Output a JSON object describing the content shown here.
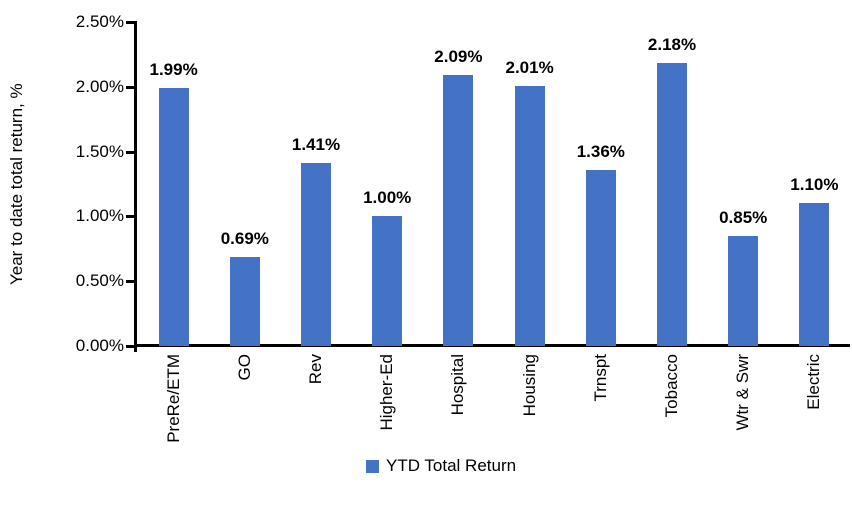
{
  "chart_data": {
    "type": "bar",
    "title": "",
    "xlabel": "",
    "ylabel": "Year to date total return, %",
    "categories": [
      "PreRe/ETM",
      "GO",
      "Rev",
      "Higher-Ed",
      "Hospital",
      "Housing",
      "Trnspt",
      "Tobacco",
      "Wtr & Swr",
      "Electric"
    ],
    "series": [
      {
        "name": "YTD Total Return",
        "values": [
          1.99,
          0.69,
          1.41,
          1.0,
          2.09,
          2.01,
          1.36,
          2.18,
          0.85,
          1.1
        ]
      }
    ],
    "data_labels": [
      "1.99%",
      "0.69%",
      "1.41%",
      "1.00%",
      "2.09%",
      "2.01%",
      "1.36%",
      "2.18%",
      "0.85%",
      "1.10%"
    ],
    "y_ticks": [
      "0.00%",
      "0.50%",
      "1.00%",
      "1.50%",
      "2.00%",
      "2.50%"
    ],
    "ylim": [
      0,
      2.5
    ],
    "grid": false,
    "bar_color": "#4472C4",
    "axis_color": "#000000",
    "legend": {
      "position": "bottom",
      "entries": [
        "YTD Total Return"
      ]
    }
  }
}
